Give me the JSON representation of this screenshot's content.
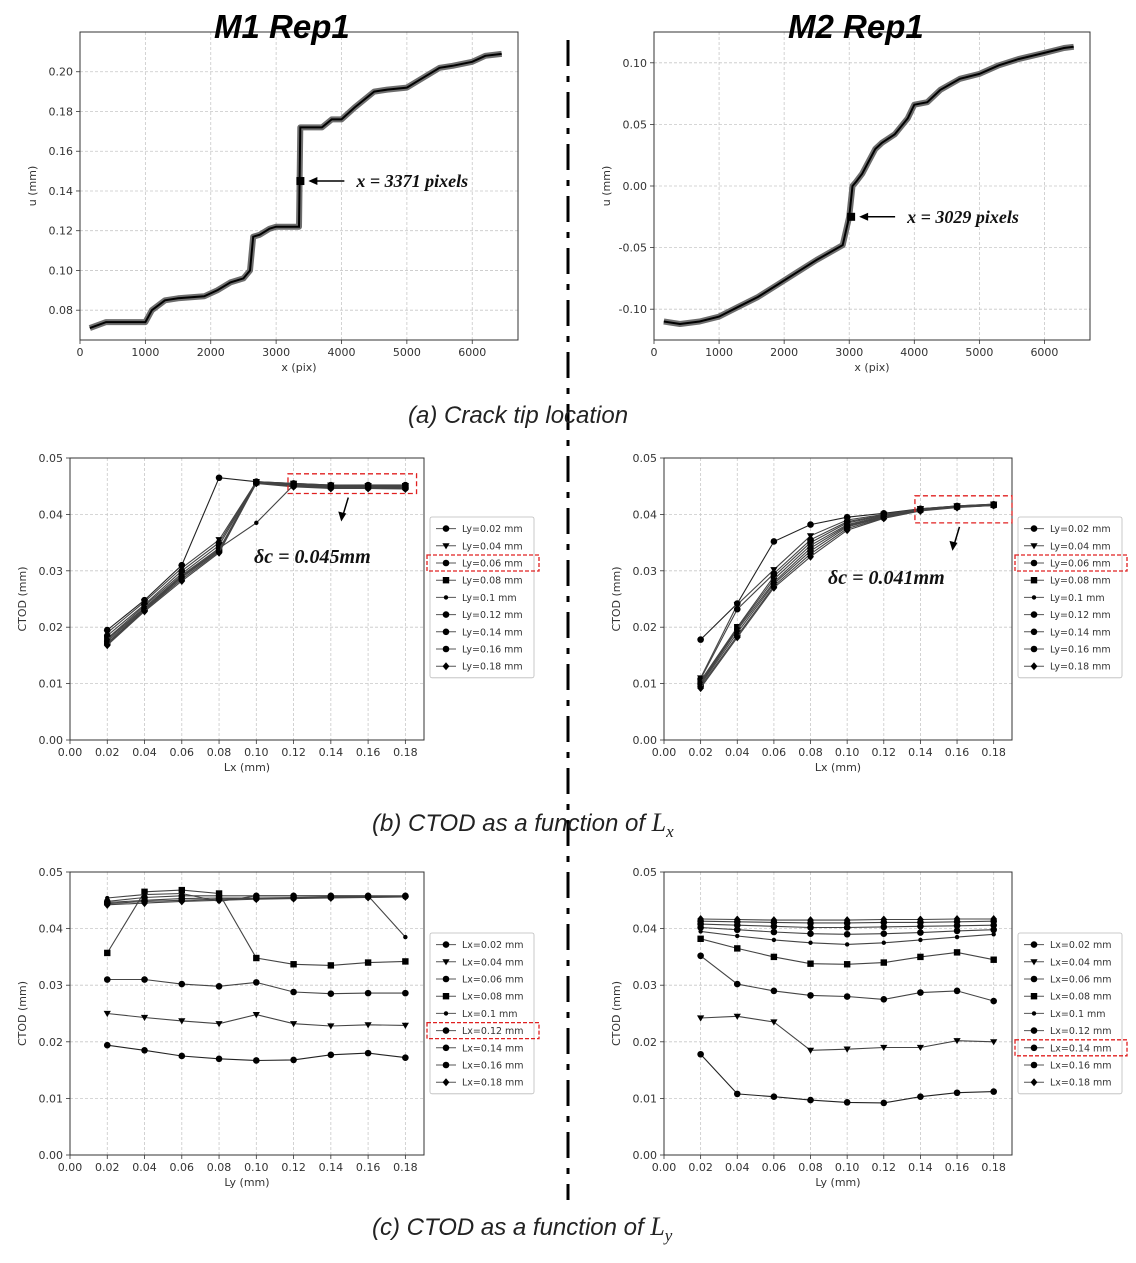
{
  "panel_titles": {
    "left": "M1 Rep1",
    "right": "M2 Rep1"
  },
  "captions": {
    "a": "(a) Crack tip location",
    "b_prefix": "(b) CTOD as a function of ",
    "b_var": "L",
    "b_sub": "x",
    "c_prefix": "(c) CTOD as a function of ",
    "c_var": "L",
    "c_sub": "y"
  },
  "chart_data": [
    {
      "id": "a-left",
      "type": "line",
      "xlabel": "x (pix)",
      "ylabel": "u (mm)",
      "xlim": [
        0,
        6700
      ],
      "ylim": [
        0.065,
        0.22
      ],
      "xticks": [
        0,
        1000,
        2000,
        3000,
        4000,
        5000,
        6000
      ],
      "xticklabels": [
        "0",
        "1000",
        "2000",
        "3000",
        "4000",
        "5000",
        "6000"
      ],
      "yticks": [
        0.08,
        0.1,
        0.12,
        0.14,
        0.16,
        0.18,
        0.2
      ],
      "yticklabels": [
        "0.08",
        "0.10",
        "0.12",
        "0.14",
        "0.16",
        "0.18",
        "0.20"
      ],
      "series": [
        {
          "name": "u profile",
          "x": [
            150,
            400,
            1000,
            1100,
            1300,
            1500,
            1900,
            2100,
            2300,
            2500,
            2600,
            2650,
            2750,
            2900,
            3000,
            3350,
            3370,
            3420,
            3700,
            3850,
            4000,
            4200,
            4500,
            4700,
            5000,
            5200,
            5500,
            5700,
            6000,
            6200,
            6450
          ],
          "y": [
            0.071,
            0.074,
            0.074,
            0.08,
            0.085,
            0.086,
            0.087,
            0.09,
            0.094,
            0.096,
            0.1,
            0.117,
            0.118,
            0.121,
            0.122,
            0.122,
            0.172,
            0.172,
            0.172,
            0.176,
            0.176,
            0.182,
            0.19,
            0.191,
            0.192,
            0.196,
            0.202,
            0.203,
            0.205,
            0.208,
            0.209
          ]
        }
      ],
      "marker": {
        "x": 3371,
        "y": 0.145,
        "label": "x = 3371 pixels"
      }
    },
    {
      "id": "a-right",
      "type": "line",
      "xlabel": "x (pix)",
      "ylabel": "u (mm)",
      "xlim": [
        0,
        6700
      ],
      "ylim": [
        -0.125,
        0.125
      ],
      "xticks": [
        0,
        1000,
        2000,
        3000,
        4000,
        5000,
        6000
      ],
      "xticklabels": [
        "0",
        "1000",
        "2000",
        "3000",
        "4000",
        "5000",
        "6000"
      ],
      "yticks": [
        -0.1,
        -0.05,
        0.0,
        0.05,
        0.1
      ],
      "yticklabels": [
        "-0.10",
        "-0.05",
        "0.00",
        "0.05",
        "0.10"
      ],
      "series": [
        {
          "name": "u profile",
          "x": [
            150,
            400,
            700,
            1000,
            1300,
            1600,
            1900,
            2200,
            2500,
            2700,
            2900,
            3000,
            3050,
            3100,
            3200,
            3300,
            3400,
            3500,
            3700,
            3900,
            4000,
            4200,
            4400,
            4700,
            5000,
            5300,
            5600,
            6000,
            6300,
            6450
          ],
          "y": [
            -0.11,
            -0.112,
            -0.11,
            -0.106,
            -0.098,
            -0.09,
            -0.08,
            -0.07,
            -0.06,
            -0.054,
            -0.048,
            -0.025,
            0.0,
            0.003,
            0.01,
            0.02,
            0.03,
            0.035,
            0.042,
            0.055,
            0.066,
            0.068,
            0.078,
            0.087,
            0.091,
            0.098,
            0.103,
            0.108,
            0.112,
            0.113
          ]
        }
      ],
      "marker": {
        "x": 3029,
        "y": -0.025,
        "label": "x = 3029 pixels"
      }
    },
    {
      "id": "b-left",
      "type": "line",
      "xlabel": "Lx (mm)",
      "ylabel": "CTOD (mm)",
      "xlim": [
        0,
        0.19
      ],
      "ylim": [
        0,
        0.05
      ],
      "xticks": [
        0,
        0.02,
        0.04,
        0.06,
        0.08,
        0.1,
        0.12,
        0.14,
        0.16,
        0.18
      ],
      "xticklabels": [
        "0.00",
        "0.02",
        "0.04",
        "0.06",
        "0.08",
        "0.10",
        "0.12",
        "0.14",
        "0.16",
        "0.18"
      ],
      "yticks": [
        0,
        0.01,
        0.02,
        0.03,
        0.04,
        0.05
      ],
      "yticklabels": [
        "0.00",
        "0.01",
        "0.02",
        "0.03",
        "0.04",
        "0.05"
      ],
      "x": [
        0.02,
        0.04,
        0.06,
        0.08,
        0.1,
        0.12,
        0.14,
        0.16,
        0.18
      ],
      "series": [
        {
          "name": "Ly=0.02 mm",
          "values": [
            0.0195,
            0.0248,
            0.031,
            0.0465,
            0.0458,
            0.0455,
            0.0452,
            0.0452,
            0.0452
          ]
        },
        {
          "name": "Ly=0.04 mm",
          "values": [
            0.019,
            0.0245,
            0.0305,
            0.0355,
            0.0458,
            0.0455,
            0.0452,
            0.0451,
            0.0451
          ]
        },
        {
          "name": "Ly=0.06 mm",
          "values": [
            0.0185,
            0.024,
            0.03,
            0.035,
            0.0458,
            0.0454,
            0.0451,
            0.045,
            0.045
          ]
        },
        {
          "name": "Ly=0.08 mm",
          "values": [
            0.018,
            0.0238,
            0.0295,
            0.0345,
            0.0457,
            0.0453,
            0.045,
            0.045,
            0.0449
          ]
        },
        {
          "name": "Ly=0.1 mm",
          "values": [
            0.0178,
            0.0235,
            0.0292,
            0.034,
            0.0385,
            0.0452,
            0.045,
            0.0449,
            0.0449
          ]
        },
        {
          "name": "Ly=0.12 mm",
          "values": [
            0.0175,
            0.0233,
            0.029,
            0.0338,
            0.0457,
            0.0452,
            0.0449,
            0.0448,
            0.0448
          ]
        },
        {
          "name": "Ly=0.14 mm",
          "values": [
            0.0172,
            0.0231,
            0.0288,
            0.0336,
            0.0456,
            0.0451,
            0.0448,
            0.0448,
            0.0447
          ]
        },
        {
          "name": "Ly=0.16 mm",
          "values": [
            0.017,
            0.023,
            0.0285,
            0.0334,
            0.0456,
            0.045,
            0.0447,
            0.0447,
            0.0446
          ]
        },
        {
          "name": "Ly=0.18 mm",
          "values": [
            0.0168,
            0.0228,
            0.0282,
            0.0332,
            0.0455,
            0.0449,
            0.0446,
            0.0446,
            0.0445
          ]
        }
      ],
      "highlight_legend": "Ly=0.06 mm",
      "annotation": "δc = 0.045mm"
    },
    {
      "id": "b-right",
      "type": "line",
      "xlabel": "Lx (mm)",
      "ylabel": "CTOD (mm)",
      "xlim": [
        0,
        0.19
      ],
      "ylim": [
        0,
        0.05
      ],
      "xticks": [
        0,
        0.02,
        0.04,
        0.06,
        0.08,
        0.1,
        0.12,
        0.14,
        0.16,
        0.18
      ],
      "xticklabels": [
        "0.00",
        "0.02",
        "0.04",
        "0.06",
        "0.08",
        "0.10",
        "0.12",
        "0.14",
        "0.16",
        "0.18"
      ],
      "yticks": [
        0,
        0.01,
        0.02,
        0.03,
        0.04,
        0.05
      ],
      "yticklabels": [
        "0.00",
        "0.01",
        "0.02",
        "0.03",
        "0.04",
        "0.05"
      ],
      "x": [
        0.02,
        0.04,
        0.06,
        0.08,
        0.1,
        0.12,
        0.14,
        0.16,
        0.18
      ],
      "series": [
        {
          "name": "Ly=0.02 mm",
          "values": [
            0.0178,
            0.0242,
            0.0352,
            0.0382,
            0.0395,
            0.0402,
            0.041,
            0.0415,
            0.0418
          ]
        },
        {
          "name": "Ly=0.04 mm",
          "values": [
            0.011,
            0.024,
            0.0302,
            0.0362,
            0.039,
            0.04,
            0.041,
            0.0415,
            0.0418
          ]
        },
        {
          "name": "Ly=0.06 mm",
          "values": [
            0.0108,
            0.0232,
            0.0295,
            0.0355,
            0.0387,
            0.0399,
            0.0409,
            0.0414,
            0.0417
          ]
        },
        {
          "name": "Ly=0.08 mm",
          "values": [
            0.0105,
            0.02,
            0.029,
            0.035,
            0.0385,
            0.0398,
            0.0409,
            0.0414,
            0.0417
          ]
        },
        {
          "name": "Ly=0.1 mm",
          "values": [
            0.0102,
            0.0198,
            0.0285,
            0.0345,
            0.0382,
            0.0397,
            0.0408,
            0.0414,
            0.0417
          ]
        },
        {
          "name": "Ly=0.12 mm",
          "values": [
            0.01,
            0.0195,
            0.028,
            0.034,
            0.038,
            0.0396,
            0.0408,
            0.0413,
            0.0416
          ]
        },
        {
          "name": "Ly=0.14 mm",
          "values": [
            0.0098,
            0.019,
            0.0277,
            0.0335,
            0.0378,
            0.0395,
            0.0407,
            0.0413,
            0.0416
          ]
        },
        {
          "name": "Ly=0.16 mm",
          "values": [
            0.0095,
            0.0185,
            0.0273,
            0.033,
            0.0375,
            0.0394,
            0.0407,
            0.0413,
            0.0416
          ]
        },
        {
          "name": "Ly=0.18 mm",
          "values": [
            0.0092,
            0.0182,
            0.027,
            0.0325,
            0.0372,
            0.0393,
            0.0406,
            0.0412,
            0.0416
          ]
        }
      ],
      "highlight_legend": "Ly=0.06 mm",
      "annotation": "δc = 0.041mm"
    },
    {
      "id": "c-left",
      "type": "line",
      "xlabel": "Ly (mm)",
      "ylabel": "CTOD (mm)",
      "xlim": [
        0,
        0.19
      ],
      "ylim": [
        0,
        0.05
      ],
      "xticks": [
        0,
        0.02,
        0.04,
        0.06,
        0.08,
        0.1,
        0.12,
        0.14,
        0.16,
        0.18
      ],
      "xticklabels": [
        "0.00",
        "0.02",
        "0.04",
        "0.06",
        "0.08",
        "0.10",
        "0.12",
        "0.14",
        "0.16",
        "0.18"
      ],
      "yticks": [
        0,
        0.01,
        0.02,
        0.03,
        0.04,
        0.05
      ],
      "yticklabels": [
        "0.00",
        "0.01",
        "0.02",
        "0.03",
        "0.04",
        "0.05"
      ],
      "x": [
        0.02,
        0.04,
        0.06,
        0.08,
        0.1,
        0.12,
        0.14,
        0.16,
        0.18
      ],
      "series": [
        {
          "name": "Lx=0.02 mm",
          "values": [
            0.0194,
            0.0185,
            0.0175,
            0.017,
            0.0167,
            0.0168,
            0.0177,
            0.018,
            0.0172
          ]
        },
        {
          "name": "Lx=0.04 mm",
          "values": [
            0.025,
            0.0243,
            0.0237,
            0.0232,
            0.0248,
            0.0232,
            0.0228,
            0.023,
            0.0229
          ]
        },
        {
          "name": "Lx=0.06 mm",
          "values": [
            0.031,
            0.031,
            0.0302,
            0.0298,
            0.0305,
            0.0288,
            0.0285,
            0.0286,
            0.0286
          ]
        },
        {
          "name": "Lx=0.08 mm",
          "values": [
            0.0357,
            0.0465,
            0.0468,
            0.0462,
            0.0348,
            0.0337,
            0.0335,
            0.034,
            0.0342
          ]
        },
        {
          "name": "Lx=0.1 mm",
          "values": [
            0.0454,
            0.046,
            0.0462,
            0.0448,
            0.0458,
            0.0458,
            0.0458,
            0.0458,
            0.0385
          ]
        },
        {
          "name": "Lx=0.12 mm",
          "values": [
            0.0448,
            0.0455,
            0.0458,
            0.0458,
            0.0458,
            0.0458,
            0.0458,
            0.0458,
            0.0458
          ]
        },
        {
          "name": "Lx=0.14 mm",
          "values": [
            0.0446,
            0.045,
            0.0453,
            0.0454,
            0.0454,
            0.0455,
            0.0456,
            0.0457,
            0.0457
          ]
        },
        {
          "name": "Lx=0.16 mm",
          "values": [
            0.0444,
            0.0448,
            0.045,
            0.0452,
            0.0453,
            0.0454,
            0.0455,
            0.0456,
            0.0457
          ]
        },
        {
          "name": "Lx=0.18 mm",
          "values": [
            0.0442,
            0.0445,
            0.0448,
            0.045,
            0.0452,
            0.0453,
            0.0454,
            0.0455,
            0.0456
          ]
        }
      ],
      "highlight_legend": "Lx=0.12 mm"
    },
    {
      "id": "c-right",
      "type": "line",
      "xlabel": "Ly (mm)",
      "ylabel": "CTOD (mm)",
      "xlim": [
        0,
        0.19
      ],
      "ylim": [
        0,
        0.05
      ],
      "xticks": [
        0,
        0.02,
        0.04,
        0.06,
        0.08,
        0.1,
        0.12,
        0.14,
        0.16,
        0.18
      ],
      "xticklabels": [
        "0.00",
        "0.02",
        "0.04",
        "0.06",
        "0.08",
        "0.10",
        "0.12",
        "0.14",
        "0.16",
        "0.18"
      ],
      "yticks": [
        0,
        0.01,
        0.02,
        0.03,
        0.04,
        0.05
      ],
      "yticklabels": [
        "0.00",
        "0.01",
        "0.02",
        "0.03",
        "0.04",
        "0.05"
      ],
      "x": [
        0.02,
        0.04,
        0.06,
        0.08,
        0.1,
        0.12,
        0.14,
        0.16,
        0.18
      ],
      "series": [
        {
          "name": "Lx=0.02 mm",
          "values": [
            0.0178,
            0.0108,
            0.0103,
            0.0097,
            0.0093,
            0.0092,
            0.0103,
            0.011,
            0.0112
          ]
        },
        {
          "name": "Lx=0.04 mm",
          "values": [
            0.0242,
            0.0245,
            0.0235,
            0.0185,
            0.0187,
            0.019,
            0.019,
            0.0202,
            0.02
          ]
        },
        {
          "name": "Lx=0.06 mm",
          "values": [
            0.0352,
            0.0302,
            0.029,
            0.0282,
            0.028,
            0.0275,
            0.0287,
            0.029,
            0.0272
          ]
        },
        {
          "name": "Lx=0.08 mm",
          "values": [
            0.0382,
            0.0365,
            0.035,
            0.0338,
            0.0337,
            0.034,
            0.035,
            0.0358,
            0.0345
          ]
        },
        {
          "name": "Lx=0.1 mm",
          "values": [
            0.0395,
            0.0387,
            0.038,
            0.0375,
            0.0372,
            0.0375,
            0.038,
            0.0385,
            0.039
          ]
        },
        {
          "name": "Lx=0.12 mm",
          "values": [
            0.0402,
            0.0398,
            0.0394,
            0.0391,
            0.039,
            0.0391,
            0.0393,
            0.0396,
            0.0398
          ]
        },
        {
          "name": "Lx=0.14 mm",
          "values": [
            0.0408,
            0.0406,
            0.0404,
            0.0402,
            0.0402,
            0.0403,
            0.0404,
            0.0405,
            0.0406
          ]
        },
        {
          "name": "Lx=0.16 mm",
          "values": [
            0.0413,
            0.0412,
            0.0411,
            0.041,
            0.041,
            0.0411,
            0.0411,
            0.0412,
            0.0413
          ]
        },
        {
          "name": "Lx=0.18 mm",
          "values": [
            0.0417,
            0.0416,
            0.0415,
            0.0415,
            0.0415,
            0.0416,
            0.0416,
            0.0417,
            0.0417
          ]
        }
      ],
      "highlight_legend": "Lx=0.14 mm"
    }
  ]
}
